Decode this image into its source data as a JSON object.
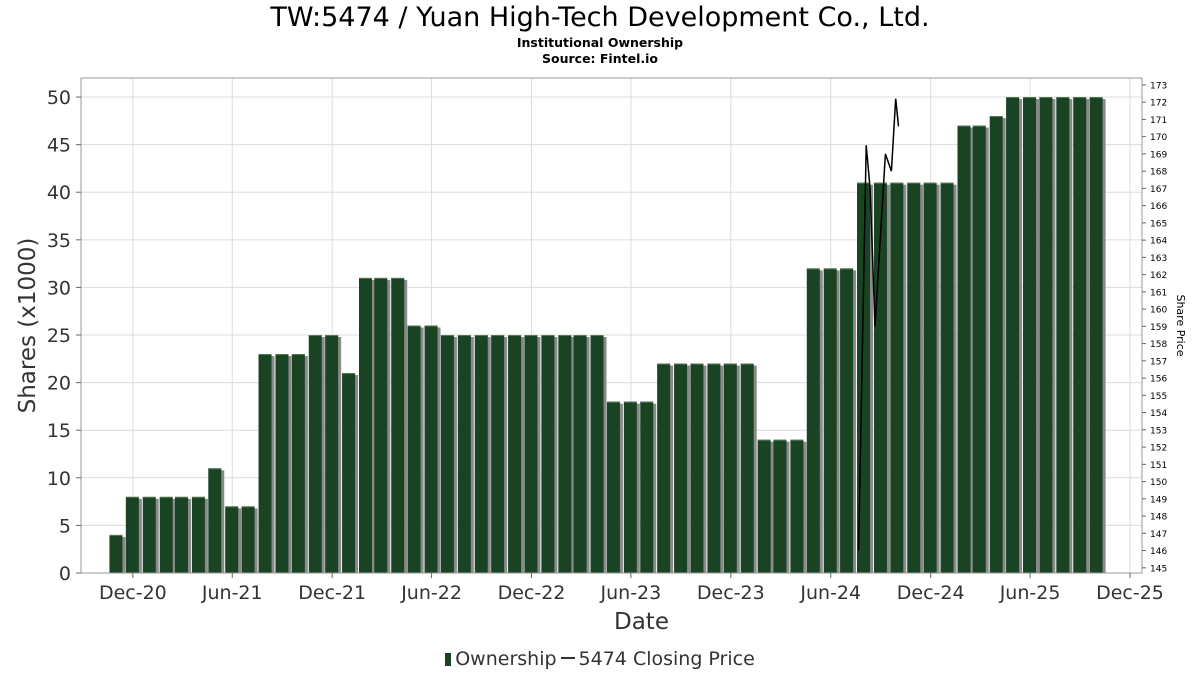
{
  "title": "TW:5474 / Yuan High-Tech Development Co., Ltd.",
  "subtitle": "Institutional Ownership",
  "source": "Source: Fintel.io",
  "legend": {
    "ownership": "Ownership",
    "price": "5474 Closing Price"
  },
  "colors": {
    "bar": "#1a4323",
    "bar_shadow": "#8a8a8a",
    "price_line": "#000000",
    "grid": "#dcdcdc"
  },
  "chart_data": {
    "type": "bar",
    "title": "TW:5474 / Yuan High-Tech Development Co., Ltd.",
    "xlabel": "Date",
    "ylabel": "Shares (x1000)",
    "y2label": "Share Price",
    "ylim": [
      0,
      52
    ],
    "y2lim": [
      144.7,
      173.4
    ],
    "yticks": [
      0,
      5,
      10,
      15,
      20,
      25,
      30,
      35,
      40,
      45,
      50
    ],
    "y2ticks": [
      145,
      146,
      147,
      148,
      149,
      150,
      151,
      152,
      153,
      154,
      155,
      156,
      157,
      158,
      159,
      160,
      161,
      162,
      163,
      164,
      165,
      166,
      167,
      168,
      169,
      170,
      171,
      172,
      173
    ],
    "xlim": [
      "2020-08-28",
      "2025-12-23"
    ],
    "xticks": [
      {
        "label": "Dec-20",
        "date": "2020-12-01"
      },
      {
        "label": "Jun-21",
        "date": "2021-06-01"
      },
      {
        "label": "Dec-21",
        "date": "2021-12-01"
      },
      {
        "label": "Jun-22",
        "date": "2022-06-01"
      },
      {
        "label": "Dec-22",
        "date": "2022-12-01"
      },
      {
        "label": "Jun-23",
        "date": "2023-06-01"
      },
      {
        "label": "Dec-23",
        "date": "2023-12-01"
      },
      {
        "label": "Jun-24",
        "date": "2024-06-01"
      },
      {
        "label": "Dec-24",
        "date": "2024-12-01"
      },
      {
        "label": "Jun-25",
        "date": "2025-06-01"
      },
      {
        "label": "Dec-25",
        "date": "2025-12-01"
      }
    ],
    "series": [
      {
        "name": "Ownership",
        "points": [
          [
            "2020-10-31",
            4
          ],
          [
            "2020-11-30",
            8
          ],
          [
            "2020-12-31",
            8
          ],
          [
            "2021-01-31",
            8
          ],
          [
            "2021-02-28",
            8
          ],
          [
            "2021-03-31",
            8
          ],
          [
            "2021-04-30",
            11
          ],
          [
            "2021-05-31",
            7
          ],
          [
            "2021-06-30",
            7
          ],
          [
            "2021-07-31",
            23
          ],
          [
            "2021-08-31",
            23
          ],
          [
            "2021-09-30",
            23
          ],
          [
            "2021-10-31",
            25
          ],
          [
            "2021-11-30",
            25
          ],
          [
            "2021-12-31",
            21
          ],
          [
            "2022-01-31",
            31
          ],
          [
            "2022-02-28",
            31
          ],
          [
            "2022-03-31",
            31
          ],
          [
            "2022-04-30",
            26
          ],
          [
            "2022-05-31",
            26
          ],
          [
            "2022-06-30",
            25
          ],
          [
            "2022-07-31",
            25
          ],
          [
            "2022-08-31",
            25
          ],
          [
            "2022-09-30",
            25
          ],
          [
            "2022-10-31",
            25
          ],
          [
            "2022-11-30",
            25
          ],
          [
            "2022-12-31",
            25
          ],
          [
            "2023-01-31",
            25
          ],
          [
            "2023-02-28",
            25
          ],
          [
            "2023-03-31",
            25
          ],
          [
            "2023-04-30",
            18
          ],
          [
            "2023-05-31",
            18
          ],
          [
            "2023-06-30",
            18
          ],
          [
            "2023-07-31",
            22
          ],
          [
            "2023-08-31",
            22
          ],
          [
            "2023-09-30",
            22
          ],
          [
            "2023-10-31",
            22
          ],
          [
            "2023-11-30",
            22
          ],
          [
            "2023-12-31",
            22
          ],
          [
            "2024-01-31",
            14
          ],
          [
            "2024-02-29",
            14
          ],
          [
            "2024-03-31",
            14
          ],
          [
            "2024-04-30",
            32
          ],
          [
            "2024-05-31",
            32
          ],
          [
            "2024-06-30",
            32
          ],
          [
            "2024-07-31",
            41
          ],
          [
            "2024-08-31",
            41
          ],
          [
            "2024-09-30",
            41
          ],
          [
            "2024-10-31",
            41
          ],
          [
            "2024-11-30",
            41
          ],
          [
            "2024-12-31",
            41
          ],
          [
            "2025-01-31",
            47
          ],
          [
            "2025-02-28",
            47
          ],
          [
            "2025-03-31",
            48
          ],
          [
            "2025-04-30",
            50
          ],
          [
            "2025-05-31",
            50
          ],
          [
            "2025-06-30",
            50
          ],
          [
            "2025-07-31",
            50
          ],
          [
            "2025-08-31",
            50
          ],
          [
            "2025-09-30",
            50
          ]
        ]
      },
      {
        "name": "5474 Closing Price",
        "axis": "right",
        "type": "line",
        "points": [
          [
            "2024-07-22",
            146.0
          ],
          [
            "2024-08-05",
            169.5
          ],
          [
            "2024-08-12",
            167.0
          ],
          [
            "2024-08-21",
            159.0
          ],
          [
            "2024-09-09",
            169.0
          ],
          [
            "2024-09-20",
            168.0
          ],
          [
            "2024-09-28",
            172.2
          ],
          [
            "2024-10-03",
            170.6
          ]
        ]
      }
    ],
    "legend_position": "bottom",
    "grid": true
  }
}
